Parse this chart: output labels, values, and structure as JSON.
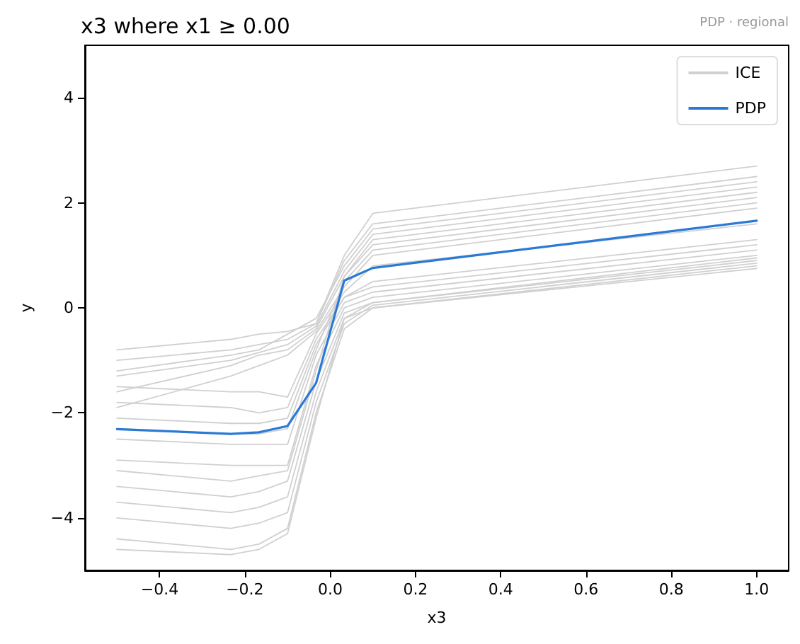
{
  "chart_data": {
    "type": "line",
    "title": "x3 where x1 ≥ 0.00",
    "xlabel": "x3",
    "ylabel": "y",
    "annotations": [
      "PDP · regional"
    ],
    "x": [
      -0.5,
      -0.233,
      -0.167,
      -0.1,
      -0.033,
      0.033,
      0.1,
      1.0
    ],
    "xlim": [
      -0.575,
      1.075
    ],
    "xticks": [
      {
        "value": -0.4,
        "label": "−0.4"
      },
      {
        "value": -0.2,
        "label": "−0.2"
      },
      {
        "value": 0,
        "label": "0.0"
      },
      {
        "value": 0.2,
        "label": "0.2"
      },
      {
        "value": 0.4,
        "label": "0.4"
      },
      {
        "value": 0.6,
        "label": "0.6"
      },
      {
        "value": 0.8,
        "label": "0.8"
      },
      {
        "value": 1.0,
        "label": "1.0"
      }
    ],
    "ylim": [
      -5,
      5
    ],
    "yticks": [
      {
        "value": -4,
        "label": "−4"
      },
      {
        "value": -2,
        "label": "−2"
      },
      0,
      2,
      4
    ],
    "grid": false,
    "legend": "top right",
    "marker": "none",
    "line_style": "solid",
    "series": [
      {
        "name": "ICE",
        "color": "#d0d0d0",
        "values": [
          -0.8,
          -0.6,
          -0.5,
          -0.45,
          -0.3,
          1.0,
          1.8,
          2.7
        ]
      },
      {
        "color": "#d0d0d0",
        "values": [
          -1.0,
          -0.8,
          -0.7,
          -0.6,
          -0.3,
          0.9,
          1.6,
          2.5
        ]
      },
      {
        "color": "#d0d0d0",
        "values": [
          -1.3,
          -1.0,
          -0.85,
          -0.7,
          -0.35,
          0.7,
          1.4,
          2.3
        ]
      },
      {
        "color": "#d0d0d0",
        "values": [
          -1.6,
          -1.1,
          -0.9,
          -0.8,
          -0.4,
          0.6,
          1.2,
          2.1
        ]
      },
      {
        "color": "#d0d0d0",
        "values": [
          -1.9,
          -1.3,
          -1.1,
          -0.9,
          -0.45,
          0.4,
          1.0,
          1.9
        ]
      },
      {
        "color": "#d0d0d0",
        "values": [
          -1.5,
          -1.6,
          -1.6,
          -1.7,
          -0.5,
          0.3,
          0.8,
          1.6
        ]
      },
      {
        "color": "#d0d0d0",
        "values": [
          -2.1,
          -2.2,
          -2.2,
          -2.1,
          -0.7,
          0.2,
          0.5,
          1.3
        ]
      },
      {
        "color": "#d0d0d0",
        "values": [
          -2.5,
          -2.6,
          -2.6,
          -2.6,
          -0.9,
          0.1,
          0.3,
          1.1
        ]
      },
      {
        "color": "#d0d0d0",
        "values": [
          -2.9,
          -3.0,
          -3.0,
          -3.0,
          -1.1,
          0.0,
          0.2,
          1.0
        ]
      },
      {
        "color": "#d0d0d0",
        "values": [
          -3.4,
          -3.6,
          -3.5,
          -3.3,
          -1.4,
          -0.1,
          0.1,
          0.9
        ]
      },
      {
        "color": "#d0d0d0",
        "values": [
          -3.7,
          -3.9,
          -3.8,
          -3.6,
          -1.6,
          -0.2,
          0.0,
          0.8
        ]
      },
      {
        "color": "#d0d0d0",
        "values": [
          -4.0,
          -4.2,
          -4.1,
          -3.9,
          -1.8,
          -0.3,
          0.05,
          0.85
        ]
      },
      {
        "color": "#d0d0d0",
        "values": [
          -4.4,
          -4.6,
          -4.5,
          -4.2,
          -2.0,
          -0.4,
          0.0,
          0.75
        ]
      },
      {
        "color": "#d0d0d0",
        "values": [
          -4.6,
          -4.7,
          -4.6,
          -4.3,
          -2.1,
          -0.2,
          0.1,
          0.95
        ]
      },
      {
        "color": "#d0d0d0",
        "values": [
          -1.2,
          -0.9,
          -0.8,
          -0.5,
          -0.2,
          0.8,
          1.5,
          2.4
        ]
      },
      {
        "color": "#d0d0d0",
        "values": [
          -2.3,
          -2.4,
          -2.4,
          -2.3,
          -0.8,
          0.5,
          1.1,
          2.0
        ]
      },
      {
        "color": "#d0d0d0",
        "values": [
          -3.1,
          -3.3,
          -3.2,
          -3.1,
          -1.2,
          0.6,
          1.3,
          2.2
        ]
      },
      {
        "color": "#d0d0d0",
        "values": [
          -1.8,
          -1.9,
          -2.0,
          -1.9,
          -0.6,
          0.2,
          0.4,
          1.2
        ]
      },
      {
        "name": "PDP",
        "color": "#2a7ad5",
        "values": [
          -2.31,
          -2.4,
          -2.37,
          -2.25,
          -1.43,
          0.52,
          0.76,
          1.66
        ]
      }
    ]
  }
}
